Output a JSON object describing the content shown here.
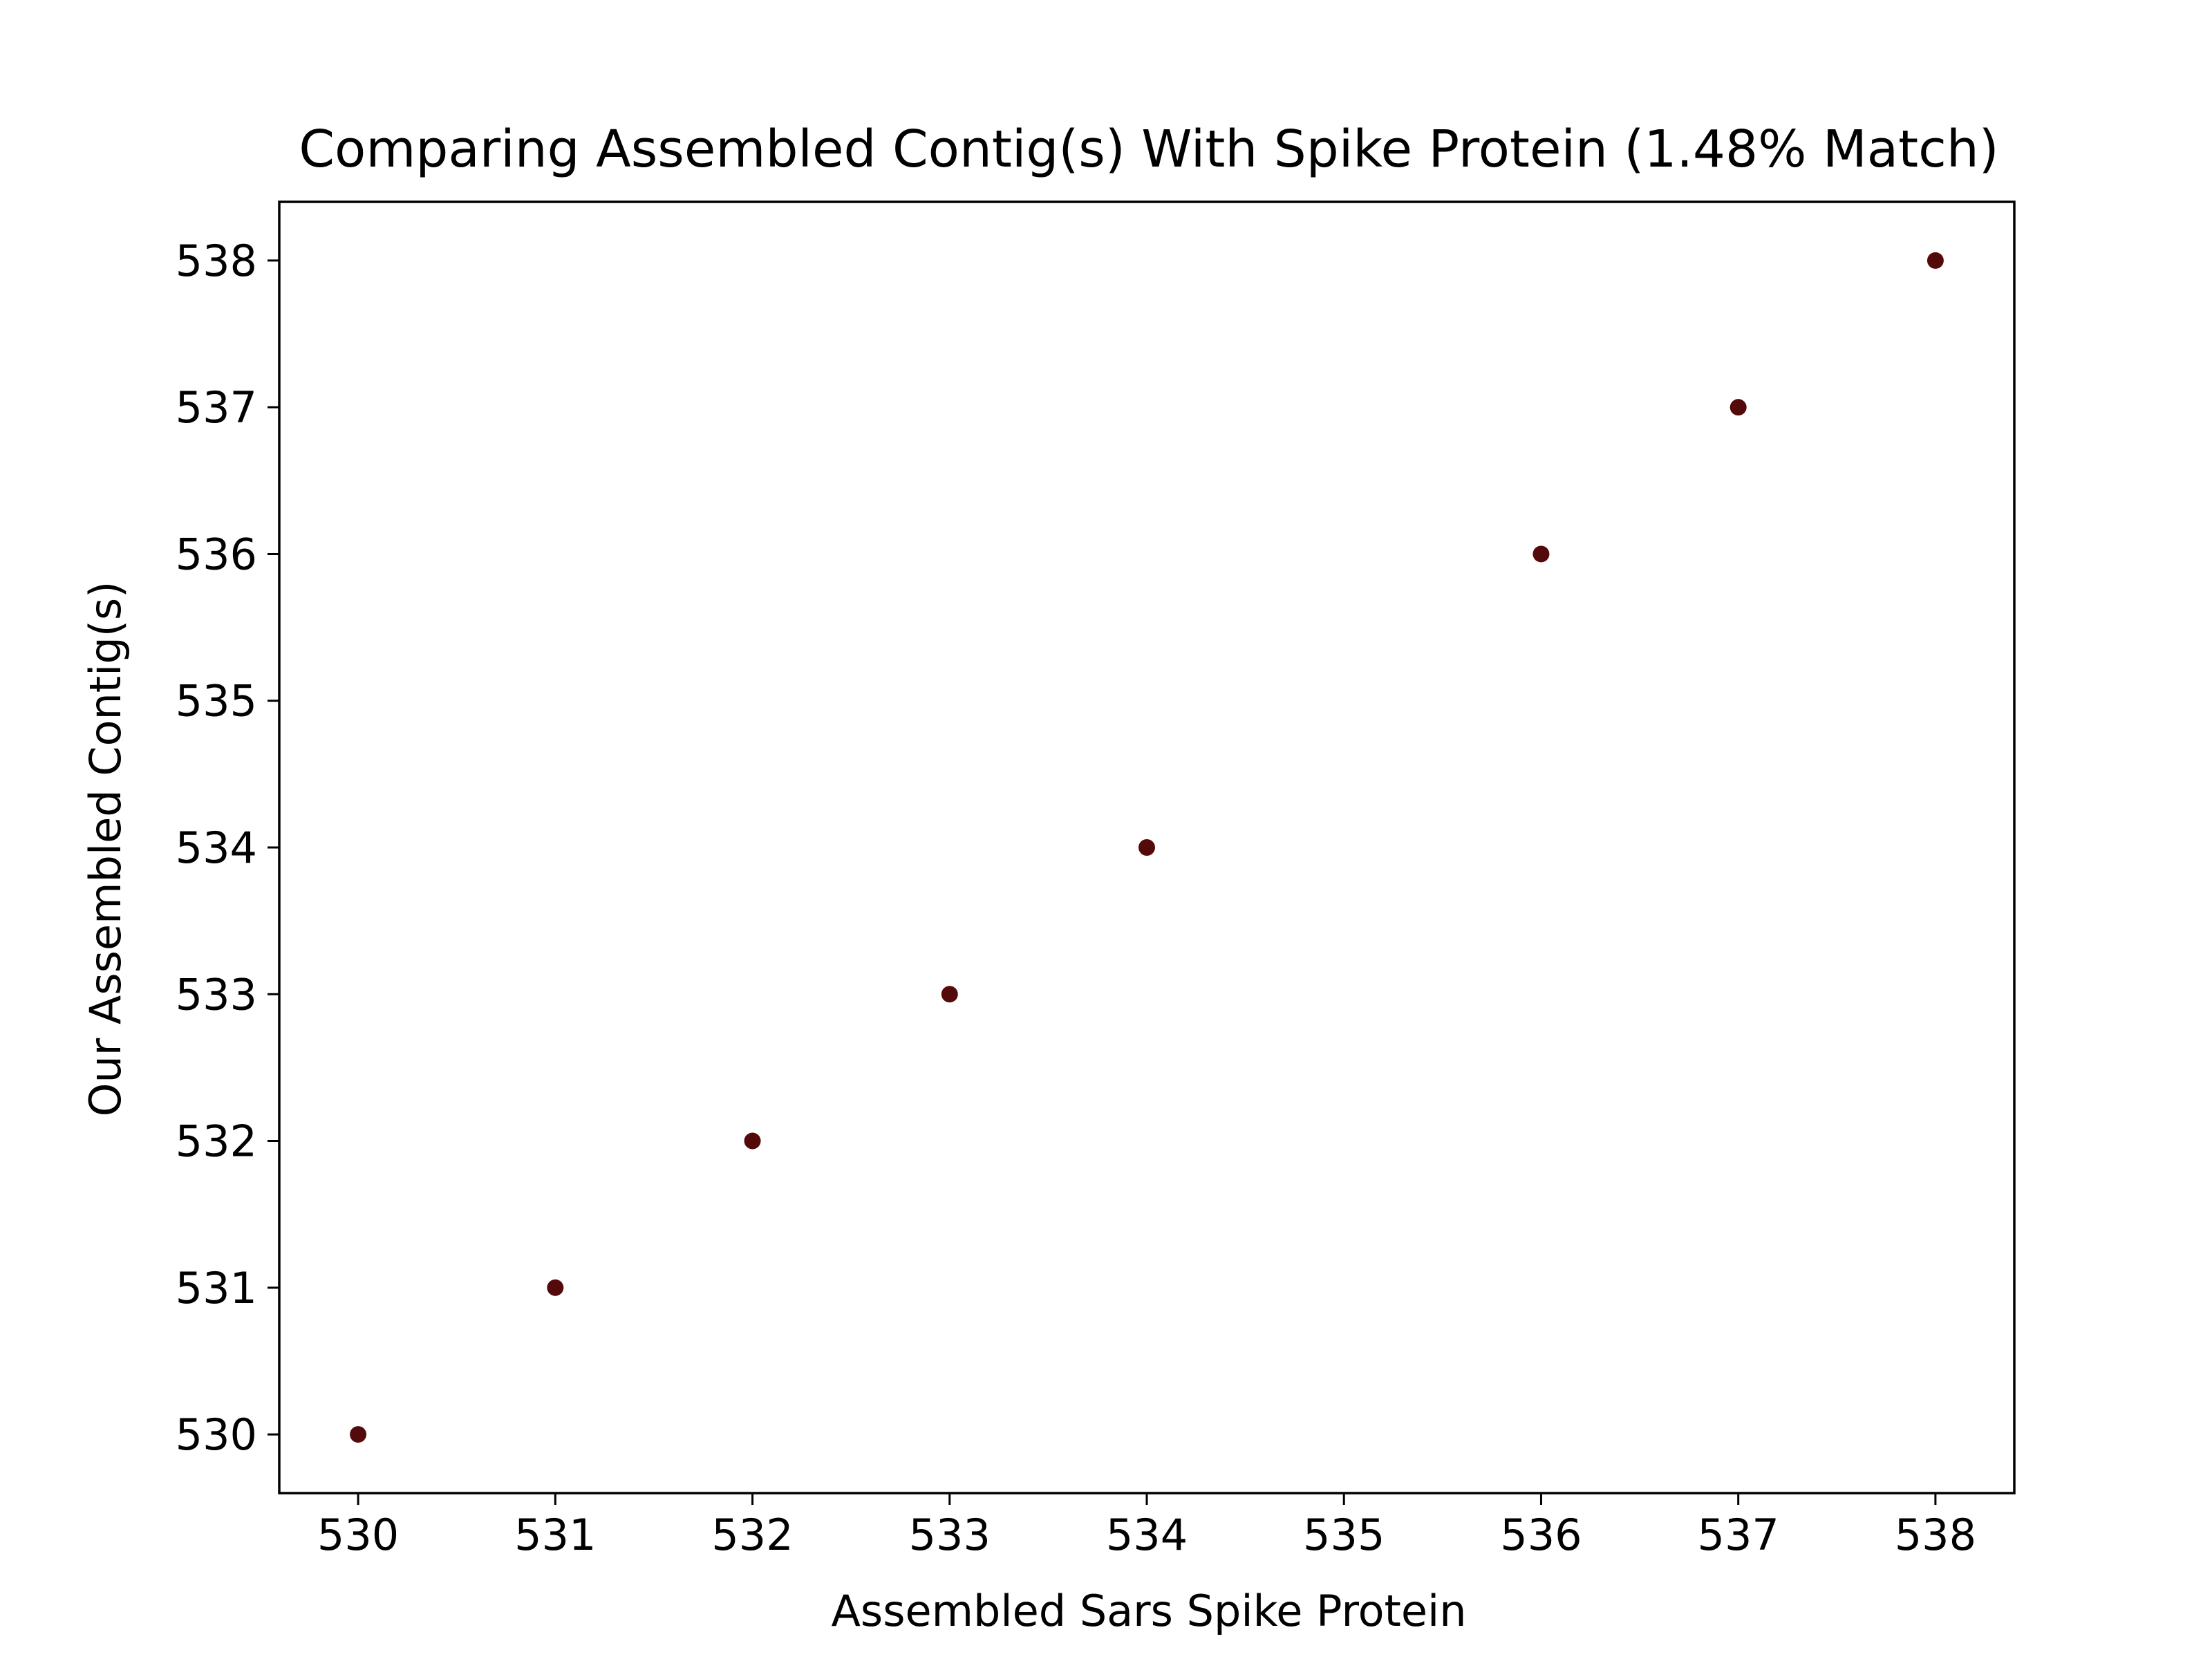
{
  "chart_data": {
    "type": "scatter",
    "title": "Comparing Assembled Contig(s) With Spike Protein (1.48% Match)",
    "xlabel": "Assembled Sars Spike Protein",
    "ylabel": "Our Assembled Contig(s)",
    "xlim": [
      529.6,
      538.4
    ],
    "ylim": [
      529.6,
      538.4
    ],
    "x_ticks": [
      530,
      531,
      532,
      533,
      534,
      535,
      536,
      537,
      538
    ],
    "y_ticks": [
      530,
      531,
      532,
      533,
      534,
      535,
      536,
      537,
      538
    ],
    "grid": false,
    "legend": "none",
    "marker_color": "#540a0a",
    "points": [
      {
        "x": 530,
        "y": 530
      },
      {
        "x": 531,
        "y": 531
      },
      {
        "x": 532,
        "y": 532
      },
      {
        "x": 533,
        "y": 533
      },
      {
        "x": 534,
        "y": 534
      },
      {
        "x": 536,
        "y": 536
      },
      {
        "x": 537,
        "y": 537
      },
      {
        "x": 538,
        "y": 538
      }
    ]
  }
}
